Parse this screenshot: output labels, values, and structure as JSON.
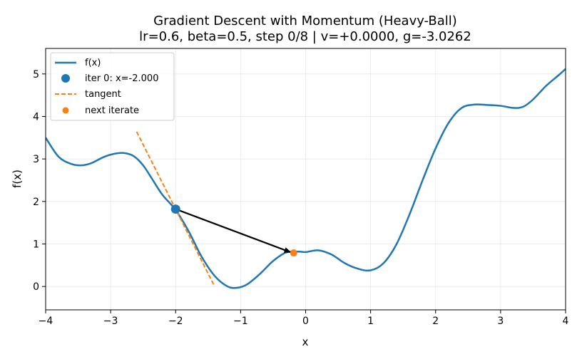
{
  "chart_data": {
    "type": "line",
    "title": "Gradient Descent with Momentum (Heavy-Ball)",
    "subtitle": "lr=0.6, beta=0.5, step 0/8 | v=+0.0000, g=-3.0262",
    "xlabel": "x",
    "ylabel": "f(x)",
    "xlim": [
      -4,
      4
    ],
    "ylim": [
      -0.55,
      5.6
    ],
    "xticks": [
      -4,
      -3,
      -2,
      -1,
      0,
      1,
      2,
      3,
      4
    ],
    "yticks": [
      0,
      1,
      2,
      3,
      4,
      5
    ],
    "xtick_labels": [
      "−4",
      "−3",
      "−2",
      "−1",
      "0",
      "1",
      "2",
      "3",
      "4"
    ],
    "ytick_labels": [
      "0",
      "1",
      "2",
      "3",
      "4",
      "5"
    ],
    "grid": true,
    "legend_placement": "top-left",
    "series": [
      {
        "name": "f(x)",
        "kind": "line",
        "color": "#1f77b4",
        "x": [
          -4.0,
          -3.8,
          -3.6,
          -3.45,
          -3.3,
          -3.1,
          -2.95,
          -2.8,
          -2.65,
          -2.5,
          -2.35,
          -2.2,
          -2.0,
          -1.8,
          -1.6,
          -1.4,
          -1.2,
          -1.05,
          -0.9,
          -0.7,
          -0.5,
          -0.3,
          -0.1,
          0.0,
          0.2,
          0.4,
          0.6,
          0.8,
          1.0,
          1.2,
          1.4,
          1.6,
          1.8,
          2.0,
          2.2,
          2.4,
          2.6,
          2.8,
          3.0,
          3.2,
          3.35,
          3.5,
          3.7,
          3.9,
          4.0
        ],
        "y": [
          3.5,
          3.05,
          2.88,
          2.85,
          2.9,
          3.05,
          3.12,
          3.14,
          3.07,
          2.85,
          2.5,
          2.15,
          1.8,
          1.3,
          0.7,
          0.25,
          0.0,
          -0.03,
          0.05,
          0.3,
          0.6,
          0.8,
          0.82,
          0.81,
          0.85,
          0.75,
          0.55,
          0.42,
          0.38,
          0.55,
          1.0,
          1.7,
          2.5,
          3.25,
          3.85,
          4.2,
          4.28,
          4.27,
          4.25,
          4.2,
          4.23,
          4.4,
          4.72,
          4.98,
          5.12
        ]
      },
      {
        "name": "iter 0: x=-2.000",
        "kind": "point",
        "color": "#1f77b4",
        "x": [
          -2.0
        ],
        "y": [
          1.82
        ]
      },
      {
        "name": "tangent",
        "kind": "dashed-line",
        "color": "#ff7f0e",
        "x": [
          -2.6,
          -1.4
        ],
        "y": [
          3.64,
          0.0
        ]
      },
      {
        "name": "next iterate",
        "kind": "point",
        "color": "#ff7f0e",
        "x": [
          -0.184
        ],
        "y": [
          0.79
        ]
      }
    ],
    "annotations": [
      {
        "type": "arrow",
        "from": [
          -2.0,
          1.82
        ],
        "to": [
          -0.24,
          0.81
        ],
        "color": "#000000"
      }
    ]
  }
}
